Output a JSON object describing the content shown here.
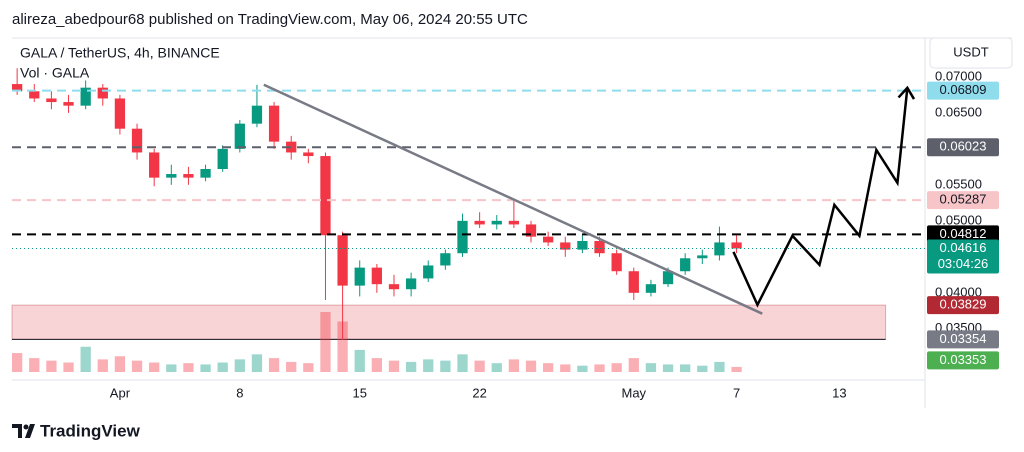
{
  "chart_data": {
    "type": "candlestick",
    "publisher": "alireza_abedpour68 published on TradingView.com, May 06, 2024 20:55 UTC",
    "title": "GALA / TetherUS, 4h, BINANCE",
    "volume_label": "Vol · GALA",
    "currency": "USDT",
    "brand": "TradingView",
    "up_color": "#089981",
    "down_color": "#f23645",
    "grid": false,
    "xlim": [
      -6.3,
      46.3
    ],
    "ylim": [
      0.029,
      0.0754
    ],
    "xticks": [
      {
        "value": 0,
        "label": "Apr"
      },
      {
        "value": 7,
        "label": "8"
      },
      {
        "value": 14,
        "label": "15"
      },
      {
        "value": 21,
        "label": "22"
      },
      {
        "value": 30,
        "label": "May"
      },
      {
        "value": 36,
        "label": "7"
      },
      {
        "value": 42,
        "label": "13"
      }
    ],
    "yticks": [
      {
        "value": 0.07,
        "label": "0.07000"
      },
      {
        "value": 0.065,
        "label": "0.06500"
      },
      {
        "value": 0.055,
        "label": "0.05500"
      },
      {
        "value": 0.05,
        "label": "0.05000"
      },
      {
        "value": 0.04,
        "label": "0.04000"
      },
      {
        "value": 0.035,
        "label": "0.03500"
      }
    ],
    "x": [
      -6,
      -5,
      -4,
      -3,
      -2,
      -1,
      0,
      1,
      2,
      3,
      4,
      5,
      6,
      7,
      8,
      9,
      10,
      11,
      12,
      13,
      14,
      15,
      16,
      17,
      18,
      19,
      20,
      21,
      22,
      23,
      24,
      25,
      26,
      27,
      28,
      29,
      30,
      31,
      32,
      33,
      34,
      35,
      36
    ],
    "open": [
      0.069,
      0.068,
      0.067,
      0.0665,
      0.066,
      0.0685,
      0.067,
      0.0628,
      0.0595,
      0.056,
      0.0565,
      0.056,
      0.0572,
      0.06,
      0.0635,
      0.066,
      0.061,
      0.0595,
      0.059,
      0.048,
      0.041,
      0.0435,
      0.0412,
      0.0405,
      0.042,
      0.0438,
      0.0455,
      0.05,
      0.0495,
      0.05,
      0.0495,
      0.0478,
      0.047,
      0.046,
      0.0472,
      0.0455,
      0.043,
      0.04,
      0.0412,
      0.043,
      0.0448,
      0.0452,
      0.047
    ],
    "high": [
      0.0712,
      0.069,
      0.068,
      0.0675,
      0.0695,
      0.069,
      0.0675,
      0.0635,
      0.06,
      0.0578,
      0.0575,
      0.0578,
      0.0605,
      0.064,
      0.0689,
      0.0665,
      0.0618,
      0.06,
      0.0595,
      0.0485,
      0.0445,
      0.044,
      0.0425,
      0.0428,
      0.0445,
      0.046,
      0.051,
      0.0512,
      0.0508,
      0.0529,
      0.05,
      0.0485,
      0.0478,
      0.048,
      0.0478,
      0.046,
      0.0435,
      0.0418,
      0.0435,
      0.0455,
      0.046,
      0.0492,
      0.048
    ],
    "low": [
      0.0675,
      0.0665,
      0.0655,
      0.065,
      0.0655,
      0.066,
      0.062,
      0.0585,
      0.0548,
      0.055,
      0.055,
      0.0555,
      0.0568,
      0.0595,
      0.063,
      0.06,
      0.0585,
      0.058,
      0.039,
      0.0335,
      0.0395,
      0.04,
      0.0395,
      0.0395,
      0.0415,
      0.0432,
      0.045,
      0.049,
      0.0488,
      0.049,
      0.047,
      0.0465,
      0.045,
      0.0455,
      0.045,
      0.0425,
      0.039,
      0.0395,
      0.0408,
      0.0425,
      0.044,
      0.0445,
      0.0455
    ],
    "close": [
      0.068,
      0.067,
      0.0665,
      0.066,
      0.0685,
      0.067,
      0.0628,
      0.0595,
      0.056,
      0.0565,
      0.056,
      0.0572,
      0.06,
      0.0635,
      0.066,
      0.061,
      0.0595,
      0.059,
      0.048,
      0.041,
      0.0435,
      0.0412,
      0.0405,
      0.042,
      0.0438,
      0.0455,
      0.05,
      0.0495,
      0.05,
      0.0495,
      0.0478,
      0.047,
      0.046,
      0.0472,
      0.0455,
      0.043,
      0.04,
      0.0412,
      0.043,
      0.0448,
      0.0452,
      0.047,
      0.04616
    ],
    "volume": [
      30,
      22,
      18,
      15,
      40,
      20,
      25,
      18,
      15,
      12,
      14,
      12,
      15,
      20,
      28,
      22,
      16,
      14,
      95,
      80,
      35,
      22,
      18,
      16,
      20,
      18,
      28,
      18,
      14,
      20,
      18,
      14,
      12,
      10,
      12,
      14,
      22,
      14,
      12,
      12,
      10,
      16,
      8
    ],
    "levels": [
      {
        "value": 0.06809,
        "color": "#8fdcec",
        "text_color": "#131722",
        "style": "dashed"
      },
      {
        "value": 0.06023,
        "color": "#5d606b",
        "text_color": "#ffffff",
        "style": "dashed"
      },
      {
        "value": 0.05287,
        "color": "#f7c5c8",
        "text_color": "#131722",
        "style": "dashed"
      },
      {
        "value": 0.04812,
        "color": "#000000",
        "text_color": "#ffffff",
        "style": "dashed"
      },
      {
        "value": 0.04616,
        "color": "#089981",
        "text_color": "#ffffff",
        "style": "dotted",
        "countdown": "03:04:26"
      }
    ],
    "zone": {
      "high": 0.03829,
      "low": 0.03354,
      "xlim": [
        -6.3,
        44.7
      ],
      "color": "#f7c5c8",
      "high_color": "#b22833",
      "low_color": "#787b86"
    },
    "markers": [
      {
        "value": 0.03353,
        "color": "#4caf50",
        "text_color": "#ffffff"
      }
    ],
    "trendline": {
      "x": [
        8.4,
        37.5
      ],
      "y": [
        0.0689,
        0.0371
      ],
      "color": "#787b86"
    },
    "projection": {
      "x": [
        35.82,
        37.22,
        39.26,
        40.84,
        41.71,
        43.17,
        44.16,
        45.39,
        45.97
      ],
      "y": [
        0.04569,
        0.03833,
        0.04792,
        0.04389,
        0.05222,
        0.04792,
        0.05986,
        0.05528,
        0.06847
      ],
      "color": "#000000"
    }
  }
}
